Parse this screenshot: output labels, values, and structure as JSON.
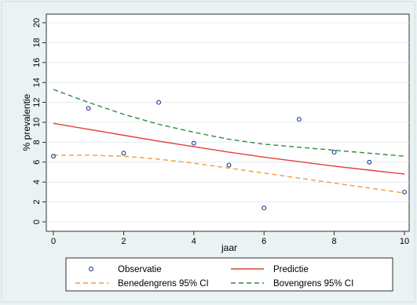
{
  "chart_data": {
    "type": "scatter",
    "xlabel": "jaar",
    "ylabel": "% prevalentie",
    "xlim": [
      0,
      10
    ],
    "ylim": [
      0,
      20
    ],
    "xticks": [
      0,
      2,
      4,
      6,
      8,
      10
    ],
    "yticks": [
      0,
      2,
      4,
      6,
      8,
      10,
      12,
      14,
      16,
      18,
      20
    ],
    "grid": "horizontal",
    "legend_position": "bottom",
    "series": [
      {
        "name": "Observatie",
        "kind": "points",
        "color": "#1a3a8a",
        "x": [
          0,
          1,
          2,
          3,
          4,
          5,
          6,
          7,
          8,
          9,
          10
        ],
        "y": [
          6.6,
          11.4,
          6.9,
          12.0,
          7.9,
          5.7,
          1.4,
          10.3,
          7.0,
          6.0,
          3.0
        ]
      },
      {
        "name": "Predictie",
        "kind": "line",
        "dash": "solid",
        "color": "#e0403a",
        "x": [
          0,
          1,
          2,
          3,
          4,
          5,
          6,
          7,
          8,
          9,
          10
        ],
        "y": [
          9.9,
          9.3,
          8.7,
          8.1,
          7.55,
          7.0,
          6.5,
          6.05,
          5.6,
          5.2,
          4.8
        ]
      },
      {
        "name": "Benedengrens 95% CI",
        "kind": "line",
        "dash": "dashed",
        "color": "#f39a3c",
        "x": [
          0,
          1,
          2,
          3,
          4,
          5,
          6,
          7,
          8,
          9,
          10
        ],
        "y": [
          6.7,
          6.7,
          6.6,
          6.3,
          5.9,
          5.4,
          4.9,
          4.4,
          3.9,
          3.4,
          2.9
        ]
      },
      {
        "name": "Bovengrens 95% CI",
        "kind": "line",
        "dash": "dashed",
        "color": "#2e8b3a",
        "x": [
          0,
          1,
          2,
          3,
          4,
          5,
          6,
          7,
          8,
          9,
          10
        ],
        "y": [
          13.3,
          12.0,
          10.8,
          9.8,
          9.0,
          8.3,
          7.8,
          7.5,
          7.2,
          6.9,
          6.6
        ]
      }
    ]
  }
}
